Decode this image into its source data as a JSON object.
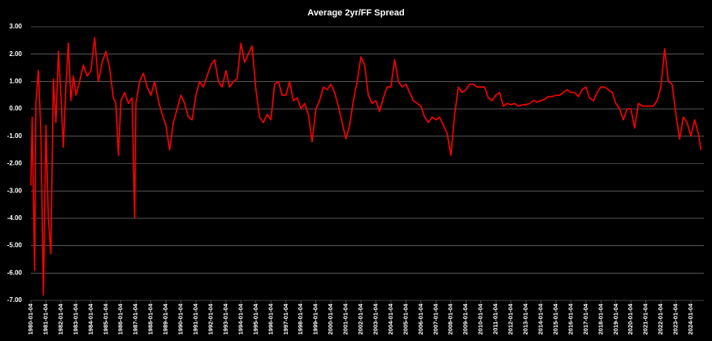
{
  "chart_data": {
    "type": "line",
    "title": "Average 2yr/FF Spread",
    "x": [
      "1980-01-04",
      "1980-02-04",
      "1980-04-04",
      "1980-05-04",
      "1980-07-04",
      "1980-09-04",
      "1980-11-04",
      "1981-01-04",
      "1981-03-04",
      "1981-05-04",
      "1981-07-04",
      "1981-09-04",
      "1981-11-04",
      "1982-01-04",
      "1982-03-04",
      "1982-05-04",
      "1982-07-04",
      "1982-09-04",
      "1982-11-04",
      "1983-01-04",
      "1983-04-04",
      "1983-07-04",
      "1983-10-04",
      "1984-01-04",
      "1984-04-04",
      "1984-07-04",
      "1984-10-04",
      "1985-01-04",
      "1985-04-04",
      "1985-07-04",
      "1985-09-04",
      "1985-11-04",
      "1986-01-04",
      "1986-04-04",
      "1986-07-04",
      "1986-10-04",
      "1986-12-04",
      "1987-01-04",
      "1987-04-04",
      "1987-07-04",
      "1987-10-04",
      "1988-01-04",
      "1988-04-04",
      "1988-07-04",
      "1988-10-04",
      "1989-01-04",
      "1989-04-04",
      "1989-07-04",
      "1989-10-04",
      "1990-01-04",
      "1990-04-04",
      "1990-07-04",
      "1990-10-04",
      "1991-01-04",
      "1991-04-04",
      "1991-07-04",
      "1991-10-04",
      "1992-01-04",
      "1992-04-04",
      "1992-07-04",
      "1992-10-04",
      "1993-01-04",
      "1993-04-04",
      "1993-07-04",
      "1993-10-04",
      "1994-01-04",
      "1994-04-04",
      "1994-07-04",
      "1994-10-04",
      "1995-01-04",
      "1995-04-04",
      "1995-07-04",
      "1995-10-04",
      "1996-01-04",
      "1996-04-04",
      "1996-07-04",
      "1996-10-04",
      "1997-01-04",
      "1997-04-04",
      "1997-07-04",
      "1997-10-04",
      "1998-01-04",
      "1998-04-04",
      "1998-07-04",
      "1998-10-04",
      "1999-01-04",
      "1999-04-04",
      "1999-07-04",
      "1999-10-04",
      "2000-01-04",
      "2000-04-04",
      "2000-07-04",
      "2000-10-04",
      "2001-01-04",
      "2001-04-04",
      "2001-07-04",
      "2001-10-04",
      "2002-01-04",
      "2002-04-04",
      "2002-07-04",
      "2002-10-04",
      "2003-01-04",
      "2003-04-04",
      "2003-07-04",
      "2003-10-04",
      "2004-01-04",
      "2004-04-04",
      "2004-07-04",
      "2004-10-04",
      "2005-01-04",
      "2005-04-04",
      "2005-07-04",
      "2005-10-04",
      "2006-01-04",
      "2006-04-04",
      "2006-07-04",
      "2006-10-04",
      "2007-01-04",
      "2007-04-04",
      "2007-07-04",
      "2007-10-04",
      "2008-01-04",
      "2008-04-04",
      "2008-07-04",
      "2008-10-04",
      "2009-01-04",
      "2009-04-04",
      "2009-07-04",
      "2009-10-04",
      "2010-01-04",
      "2010-04-04",
      "2010-07-04",
      "2010-10-04",
      "2011-01-04",
      "2011-04-04",
      "2011-07-04",
      "2011-10-04",
      "2012-01-04",
      "2012-04-04",
      "2012-07-04",
      "2012-10-04",
      "2013-01-04",
      "2013-04-04",
      "2013-07-04",
      "2013-10-04",
      "2014-01-04",
      "2014-04-04",
      "2014-07-04",
      "2014-10-04",
      "2015-01-04",
      "2015-04-04",
      "2015-07-04",
      "2015-10-04",
      "2016-01-04",
      "2016-04-04",
      "2016-07-04",
      "2016-10-04",
      "2017-01-04",
      "2017-04-04",
      "2017-07-04",
      "2017-10-04",
      "2018-01-04",
      "2018-04-04",
      "2018-07-04",
      "2018-10-04",
      "2019-01-04",
      "2019-04-04",
      "2019-07-04",
      "2019-10-04",
      "2020-01-04",
      "2020-04-04",
      "2020-07-04",
      "2020-10-04",
      "2021-01-04",
      "2021-04-04",
      "2021-07-04",
      "2021-10-04",
      "2022-01-04",
      "2022-04-04",
      "2022-07-04",
      "2022-10-04",
      "2023-01-04",
      "2023-04-04",
      "2023-07-04",
      "2023-10-04",
      "2024-01-04",
      "2024-04-04",
      "2024-07-04",
      "2024-09-04"
    ],
    "series": [
      {
        "name": "Average 2yr/FF Spread",
        "color": "#ff0000",
        "values": [
          -2.8,
          -0.3,
          -5.9,
          0.2,
          1.4,
          -0.9,
          -6.8,
          -0.6,
          -4.0,
          -5.3,
          1.1,
          -0.5,
          2.1,
          0.5,
          -1.4,
          0.8,
          2.4,
          0.3,
          1.2,
          0.5,
          1.0,
          1.6,
          1.2,
          1.4,
          2.6,
          1.0,
          1.7,
          2.1,
          1.5,
          0.4,
          0.2,
          -1.7,
          0.3,
          0.6,
          0.2,
          0.4,
          -4.0,
          0.2,
          1.0,
          1.3,
          0.8,
          0.5,
          1.0,
          0.3,
          -0.2,
          -0.6,
          -1.5,
          -0.5,
          0.0,
          0.5,
          0.2,
          -0.3,
          -0.4,
          0.5,
          1.0,
          0.8,
          1.2,
          1.6,
          1.8,
          1.0,
          0.8,
          1.4,
          0.8,
          1.0,
          1.1,
          2.4,
          1.7,
          2.0,
          2.3,
          0.7,
          -0.3,
          -0.5,
          -0.2,
          -0.4,
          0.9,
          1.0,
          0.5,
          0.5,
          1.0,
          0.3,
          0.4,
          0.0,
          0.2,
          -0.2,
          -1.2,
          0.0,
          0.3,
          0.8,
          0.7,
          0.9,
          0.6,
          0.1,
          -0.5,
          -1.1,
          -0.6,
          0.3,
          1.0,
          1.9,
          1.6,
          0.5,
          0.2,
          0.3,
          -0.1,
          0.4,
          0.8,
          0.8,
          1.8,
          1.0,
          0.8,
          0.9,
          0.6,
          0.3,
          0.2,
          0.1,
          -0.3,
          -0.5,
          -0.3,
          -0.4,
          -0.3,
          -0.6,
          -0.9,
          -1.7,
          -0.2,
          0.8,
          0.6,
          0.7,
          0.9,
          0.9,
          0.8,
          0.8,
          0.8,
          0.4,
          0.3,
          0.5,
          0.6,
          0.1,
          0.2,
          0.15,
          0.2,
          0.1,
          0.15,
          0.15,
          0.2,
          0.3,
          0.25,
          0.3,
          0.35,
          0.45,
          0.45,
          0.5,
          0.5,
          0.6,
          0.7,
          0.6,
          0.6,
          0.45,
          0.7,
          0.8,
          0.4,
          0.3,
          0.6,
          0.8,
          0.8,
          0.7,
          0.6,
          0.2,
          0.0,
          -0.4,
          0.0,
          0.0,
          -0.7,
          0.2,
          0.1,
          0.1,
          0.1,
          0.1,
          0.3,
          0.8,
          2.2,
          1.0,
          0.9,
          -0.2,
          -1.1,
          -0.3,
          -0.5,
          -1.0,
          -0.4,
          -0.9,
          -1.5
        ]
      }
    ],
    "xlim": [
      "1980-01-04",
      "2024-11-15"
    ],
    "xticks": [
      "1980-01-04",
      "1981-01-04",
      "1982-01-04",
      "1983-01-04",
      "1984-01-04",
      "1985-01-04",
      "1986-01-04",
      "1987-01-04",
      "1988-01-04",
      "1989-01-04",
      "1990-01-04",
      "1991-01-04",
      "1992-01-04",
      "1993-01-04",
      "1994-01-04",
      "1995-01-04",
      "1996-01-04",
      "1997-01-04",
      "1998-01-04",
      "1999-01-04",
      "2000-01-04",
      "2001-01-04",
      "2002-01-04",
      "2003-01-04",
      "2004-01-04",
      "2005-01-04",
      "2006-01-04",
      "2007-01-04",
      "2008-01-04",
      "2009-01-04",
      "2010-01-04",
      "2011-01-04",
      "2012-01-04",
      "2013-01-04",
      "2014-01-04",
      "2015-01-04",
      "2016-01-04",
      "2017-01-04",
      "2018-01-04",
      "2019-01-04",
      "2020-01-04",
      "2021-01-04",
      "2022-01-04",
      "2023-01-04",
      "2024-01-04"
    ],
    "ylim": [
      -7,
      3
    ],
    "yticks": [
      {
        "value": -7,
        "label": "-7.00"
      },
      {
        "value": -6,
        "label": "-6.00"
      },
      {
        "value": -5,
        "label": "-5.00"
      },
      {
        "value": -4,
        "label": "-4.00"
      },
      {
        "value": -3,
        "label": "-3.00"
      },
      {
        "value": -2,
        "label": "-2.00"
      },
      {
        "value": -1,
        "label": "-1.00"
      },
      {
        "value": 0,
        "label": "0.00"
      },
      {
        "value": 1,
        "label": "1.00"
      },
      {
        "value": 2,
        "label": "2.00"
      },
      {
        "value": 3,
        "label": "3.00"
      }
    ],
    "grid": true
  }
}
